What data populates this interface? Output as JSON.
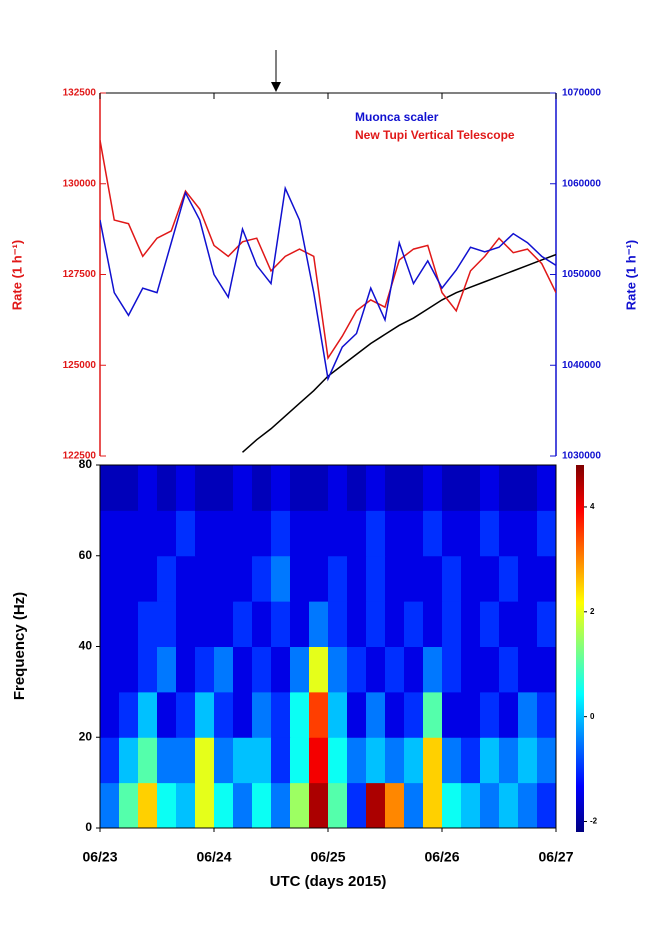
{
  "chart_data": [
    {
      "type": "line",
      "y_label": "Rate (1 h⁻¹)",
      "y2_label": "Rate (1 h⁻¹)",
      "xlim": [
        23,
        27
      ],
      "ylim": [
        122500,
        132500
      ],
      "yticks": [
        122500,
        125000,
        127500,
        130000,
        132500
      ],
      "y2lim": [
        1030000,
        1070000
      ],
      "y2ticks": [
        1030000,
        1040000,
        1050000,
        1060000,
        1070000
      ],
      "legend": "upper right",
      "x": [
        23,
        23.125,
        23.25,
        23.375,
        23.5,
        23.625,
        23.75,
        23.875,
        24,
        24.125,
        24.25,
        24.375,
        24.5,
        24.625,
        24.75,
        24.875,
        25,
        25.125,
        25.25,
        25.375,
        25.5,
        25.625,
        25.75,
        25.875,
        26,
        26.125,
        26.25,
        26.375,
        26.5,
        26.625,
        26.75,
        26.875,
        27
      ],
      "series": [
        {
          "name": "Muonca scaler",
          "color": "#1010d0",
          "axis": "y2",
          "values": [
            1056000,
            1048000,
            1045500,
            1048500,
            1048000,
            1053500,
            1059000,
            1056000,
            1050000,
            1047500,
            1055000,
            1051000,
            1049000,
            1059500,
            1056000,
            1048000,
            1038500,
            1042000,
            1043500,
            1048500,
            1045000,
            1053500,
            1049000,
            1051500,
            1048500,
            1050500,
            1053000,
            1052500,
            1053000,
            1054500,
            1053500,
            1052000,
            1051000
          ]
        },
        {
          "name": "New Tupi Vertical Telescope",
          "color": "#e01818",
          "values": [
            131200,
            129000,
            128900,
            128000,
            128500,
            128700,
            129800,
            129300,
            128300,
            128000,
            128400,
            128500,
            127600,
            128000,
            128200,
            128000,
            125200,
            125800,
            126500,
            126800,
            126600,
            127900,
            128200,
            128300,
            127000,
            126500,
            127600,
            128000,
            128500,
            128100,
            128200,
            127800,
            127000
          ]
        },
        {
          "color": "#000000",
          "values": [
            null,
            null,
            null,
            null,
            null,
            null,
            null,
            null,
            null,
            null,
            122600,
            122950,
            123250,
            123600,
            123950,
            124300,
            124700,
            125000,
            125300,
            125600,
            125850,
            126100,
            126300,
            126550,
            126800,
            127000,
            127150,
            127300,
            127450,
            127600,
            127750,
            127900,
            128050
          ]
        }
      ]
    },
    {
      "type": "heatmap",
      "x_label": "UTC (days 2015)",
      "y_label": "Frequency (Hz)",
      "xlim": [
        23,
        27
      ],
      "xticks": [
        {
          "value": 23,
          "label": "06/23"
        },
        {
          "value": 24,
          "label": "06/24"
        },
        {
          "value": 25,
          "label": "06/25"
        },
        {
          "value": 26,
          "label": "06/26"
        },
        {
          "value": 27,
          "label": "06/27"
        }
      ],
      "ylim": [
        0,
        80
      ],
      "yticks": [
        0,
        20,
        40,
        60,
        80
      ],
      "colormap": "jet",
      "zlim": [
        -2.2,
        4.8
      ],
      "zticks": [
        -2,
        0,
        2,
        4
      ],
      "values": [
        [
          -0.5,
          1.0,
          2.5,
          0.5,
          0.0,
          2.0,
          0.5,
          -0.5,
          0.5,
          -0.5,
          1.5,
          4.5,
          1.0,
          -1.0,
          4.5,
          3.0,
          -0.5,
          2.5,
          0.5,
          0.0,
          -0.5,
          0.0,
          -0.5,
          -1.0
        ],
        [
          -1.0,
          0.0,
          1.0,
          -0.5,
          -0.5,
          2.0,
          -0.5,
          0.0,
          0.0,
          -1.0,
          0.5,
          4.0,
          0.5,
          -0.5,
          0.0,
          -0.5,
          0.0,
          2.5,
          -0.5,
          -1.0,
          0.0,
          -0.5,
          0.0,
          -0.5
        ],
        [
          -1.5,
          -1.0,
          0.0,
          -1.5,
          -1.0,
          0.0,
          -1.0,
          -1.5,
          -0.5,
          -1.0,
          0.5,
          3.5,
          0.0,
          -1.5,
          -0.5,
          -1.5,
          -1.0,
          1.0,
          -1.5,
          -1.5,
          -1.0,
          -1.5,
          -0.5,
          -1.0
        ],
        [
          -1.5,
          -1.5,
          -1.0,
          -0.5,
          -1.5,
          -1.0,
          -0.5,
          -1.5,
          -1.0,
          -1.5,
          -0.5,
          2.0,
          -0.5,
          -1.0,
          -1.5,
          -1.0,
          -1.5,
          -0.5,
          -1.0,
          -1.5,
          -1.5,
          -1.0,
          -1.5,
          -1.5
        ],
        [
          -1.5,
          -1.5,
          -1.0,
          -1.0,
          -1.5,
          -1.5,
          -1.5,
          -1.0,
          -1.5,
          -1.0,
          -1.5,
          -0.5,
          -1.0,
          -1.5,
          -1.0,
          -1.5,
          -1.0,
          -1.5,
          -1.0,
          -1.5,
          -1.0,
          -1.5,
          -1.5,
          -1.0
        ],
        [
          -1.5,
          -1.5,
          -1.5,
          -1.0,
          -1.5,
          -1.5,
          -1.5,
          -1.5,
          -1.0,
          -0.5,
          -1.5,
          -1.5,
          -1.0,
          -1.5,
          -1.0,
          -1.5,
          -1.5,
          -1.5,
          -1.0,
          -1.5,
          -1.5,
          -1.0,
          -1.5,
          -1.5
        ],
        [
          -1.5,
          -1.5,
          -1.5,
          -1.5,
          -1.0,
          -1.5,
          -1.5,
          -1.5,
          -1.5,
          -1.0,
          -1.5,
          -1.5,
          -1.5,
          -1.5,
          -1.0,
          -1.5,
          -1.5,
          -1.0,
          -1.5,
          -1.5,
          -1.0,
          -1.5,
          -1.5,
          -1.0
        ],
        [
          -1.8,
          -1.8,
          -1.5,
          -1.8,
          -1.5,
          -1.8,
          -1.8,
          -1.5,
          -1.8,
          -1.5,
          -1.8,
          -1.8,
          -1.5,
          -1.8,
          -1.5,
          -1.8,
          -1.8,
          -1.5,
          -1.8,
          -1.8,
          -1.5,
          -1.8,
          -1.8,
          -1.5
        ]
      ]
    }
  ]
}
